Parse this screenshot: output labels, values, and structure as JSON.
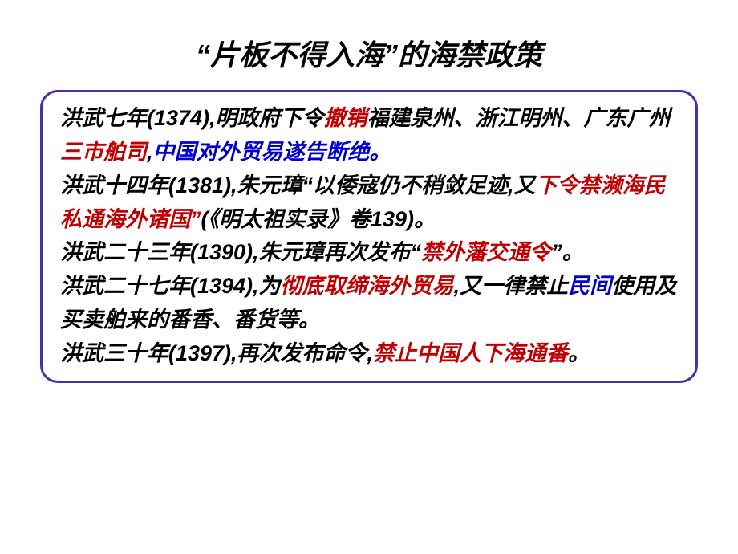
{
  "colors": {
    "black": "#000000",
    "red": "#c00000",
    "blue": "#0000cc",
    "border": "#4a2fa8",
    "title": "#000000"
  },
  "title": {
    "quote_open": "“",
    "t1": "片板不得入海",
    "quote_close": "”",
    "t2": "的海禁政策"
  },
  "body": {
    "p1": {
      "a": "洪武七年(1374),明政府下令",
      "b": "撤销",
      "c": "福建泉州、浙江明州、广东广州",
      "d": "三市舶司",
      "e": ",",
      "f": "中国对外贸易遂告断绝。"
    },
    "p2": {
      "a": "洪武十四年(1381),朱元璋“以倭寇仍不稍敛足迹,又",
      "b": "下令禁濒海民私通海外诸国”",
      "c": "(《明太祖实录》卷139)。"
    },
    "p3": {
      "a": "洪武二十三年(1390),朱元璋再次发布“",
      "b": "禁外藩交通令",
      "c": "”。"
    },
    "p4": {
      "a": "洪武二十七年(1394),为",
      "b": "彻底取缔海外贸易",
      "c": ",又一律禁止",
      "d": "民间",
      "e": "使用及买卖舶来的番香、番货等。"
    },
    "p5": {
      "a": "洪武三十年(1397),再次发布命令,",
      "b": "禁止中国人下海通番",
      "c": "。"
    }
  },
  "style": {
    "title_fontsize": 36,
    "body_fontsize": 27,
    "border_radius": 22,
    "border_width": 3,
    "line_height": 1.55
  }
}
